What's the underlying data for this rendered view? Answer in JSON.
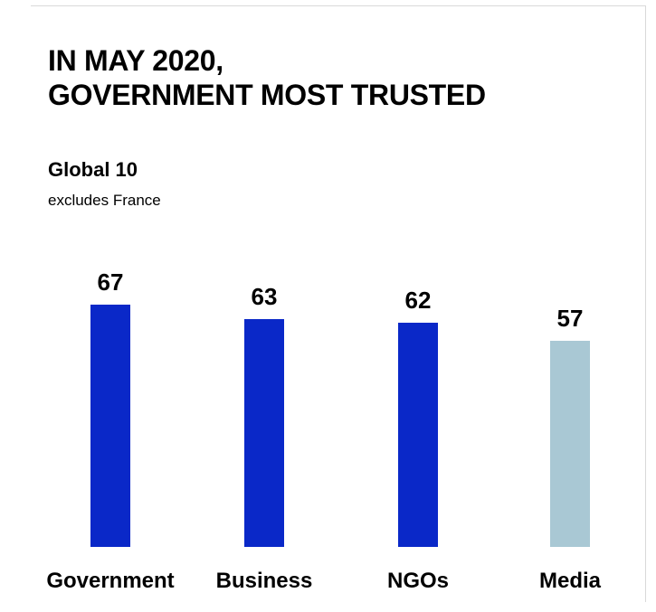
{
  "header": {
    "title_line1": "IN MAY 2020,",
    "title_line2": "GOVERNMENT MOST TRUSTED",
    "subtitle": "Global 10",
    "note": "excludes France"
  },
  "colors": {
    "highlight_bar": "#0a28c8",
    "muted_bar": "#a9c8d4"
  },
  "chart_data": {
    "type": "bar",
    "title": "IN MAY 2020, GOVERNMENT MOST TRUSTED",
    "subtitle": "Global 10",
    "categories": [
      "Government",
      "Business",
      "NGOs",
      "Media"
    ],
    "values": [
      67,
      63,
      62,
      57
    ],
    "bar_colors": [
      "#0a28c8",
      "#0a28c8",
      "#0a28c8",
      "#a9c8d4"
    ],
    "xlabel": "",
    "ylabel": "",
    "grid": false,
    "legend": "none"
  }
}
